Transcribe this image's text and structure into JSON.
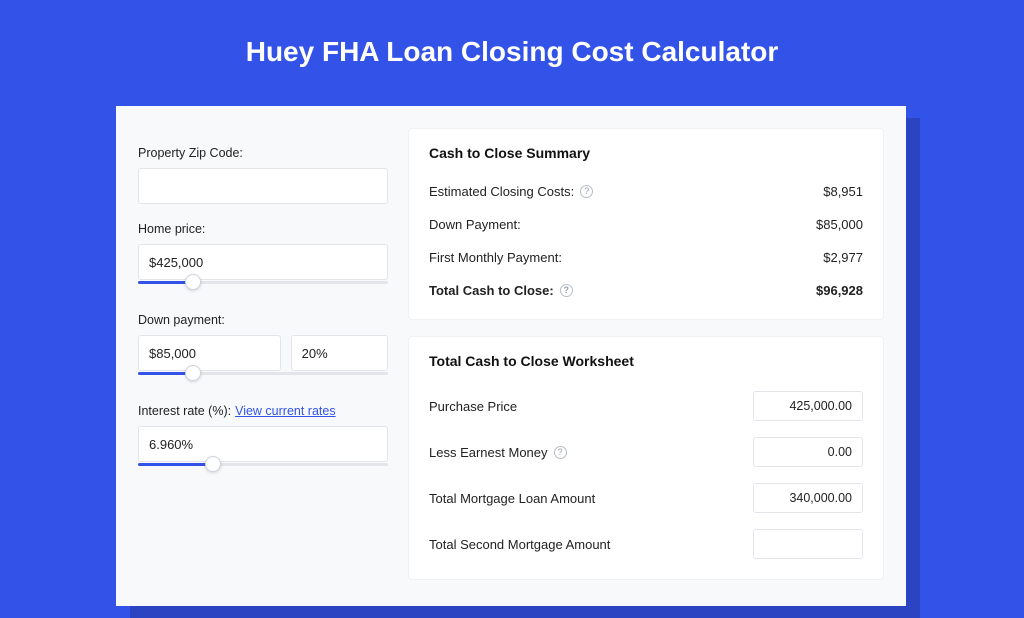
{
  "colors": {
    "page_bg": "#3353e8",
    "card_bg": "#f8f9fb",
    "card_shadow": "#2b45c2",
    "panel_bg": "#ffffff",
    "border": "#e3e5ea",
    "text": "#222222",
    "title_text": "#ffffff",
    "link": "#3353e8",
    "slider_track": "#e3e5ea",
    "slider_fill": "#3353e8",
    "help_border": "#b6bcc9"
  },
  "title": "Huey FHA Loan Closing Cost Calculator",
  "form": {
    "zip": {
      "label": "Property Zip Code:",
      "value": ""
    },
    "home_price": {
      "label": "Home price:",
      "value": "$425,000",
      "slider_pct": 22
    },
    "down_payment": {
      "label": "Down payment:",
      "value": "$85,000",
      "pct_value": "20%",
      "slider_pct": 22
    },
    "interest_rate": {
      "label": "Interest rate (%):",
      "link_text": "View current rates",
      "value": "6.960%",
      "slider_pct": 30
    }
  },
  "summary": {
    "title": "Cash to Close Summary",
    "rows": [
      {
        "label": "Estimated Closing Costs:",
        "help": true,
        "value": "$8,951",
        "bold": false
      },
      {
        "label": "Down Payment:",
        "help": false,
        "value": "$85,000",
        "bold": false
      },
      {
        "label": "First Monthly Payment:",
        "help": false,
        "value": "$2,977",
        "bold": false
      },
      {
        "label": "Total Cash to Close:",
        "help": true,
        "value": "$96,928",
        "bold": true
      }
    ]
  },
  "worksheet": {
    "title": "Total Cash to Close Worksheet",
    "rows": [
      {
        "label": "Purchase Price",
        "help": false,
        "value": "425,000.00"
      },
      {
        "label": "Less Earnest Money",
        "help": true,
        "value": "0.00"
      },
      {
        "label": "Total Mortgage Loan Amount",
        "help": false,
        "value": "340,000.00"
      },
      {
        "label": "Total Second Mortgage Amount",
        "help": false,
        "value": ""
      }
    ]
  }
}
